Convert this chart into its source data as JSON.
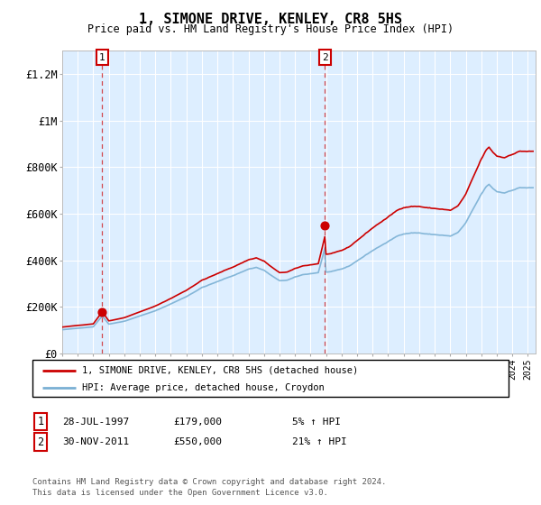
{
  "title": "1, SIMONE DRIVE, KENLEY, CR8 5HS",
  "subtitle": "Price paid vs. HM Land Registry's House Price Index (HPI)",
  "legend_line1": "1, SIMONE DRIVE, KENLEY, CR8 5HS (detached house)",
  "legend_line2": "HPI: Average price, detached house, Croydon",
  "annotation1_date": "28-JUL-1997",
  "annotation1_price": "£179,000",
  "annotation1_hpi": "5% ↑ HPI",
  "annotation1_year": 1997.58,
  "annotation1_value": 179000,
  "annotation2_date": "30-NOV-2011",
  "annotation2_price": "£550,000",
  "annotation2_hpi": "21% ↑ HPI",
  "annotation2_year": 2011.92,
  "annotation2_value": 550000,
  "footer_line1": "Contains HM Land Registry data © Crown copyright and database right 2024.",
  "footer_line2": "This data is licensed under the Open Government Licence v3.0.",
  "red_color": "#cc0000",
  "blue_color": "#7ab0d4",
  "bg_color": "#ddeeff",
  "grid_color": "#ffffff",
  "ylim": [
    0,
    1300000
  ],
  "xlim_start": 1995.0,
  "xlim_end": 2025.5,
  "hpi_base_year": 1997.58,
  "hpi_base_value": 170400,
  "prop_scale1": 179000,
  "prop_scale2": 550000
}
